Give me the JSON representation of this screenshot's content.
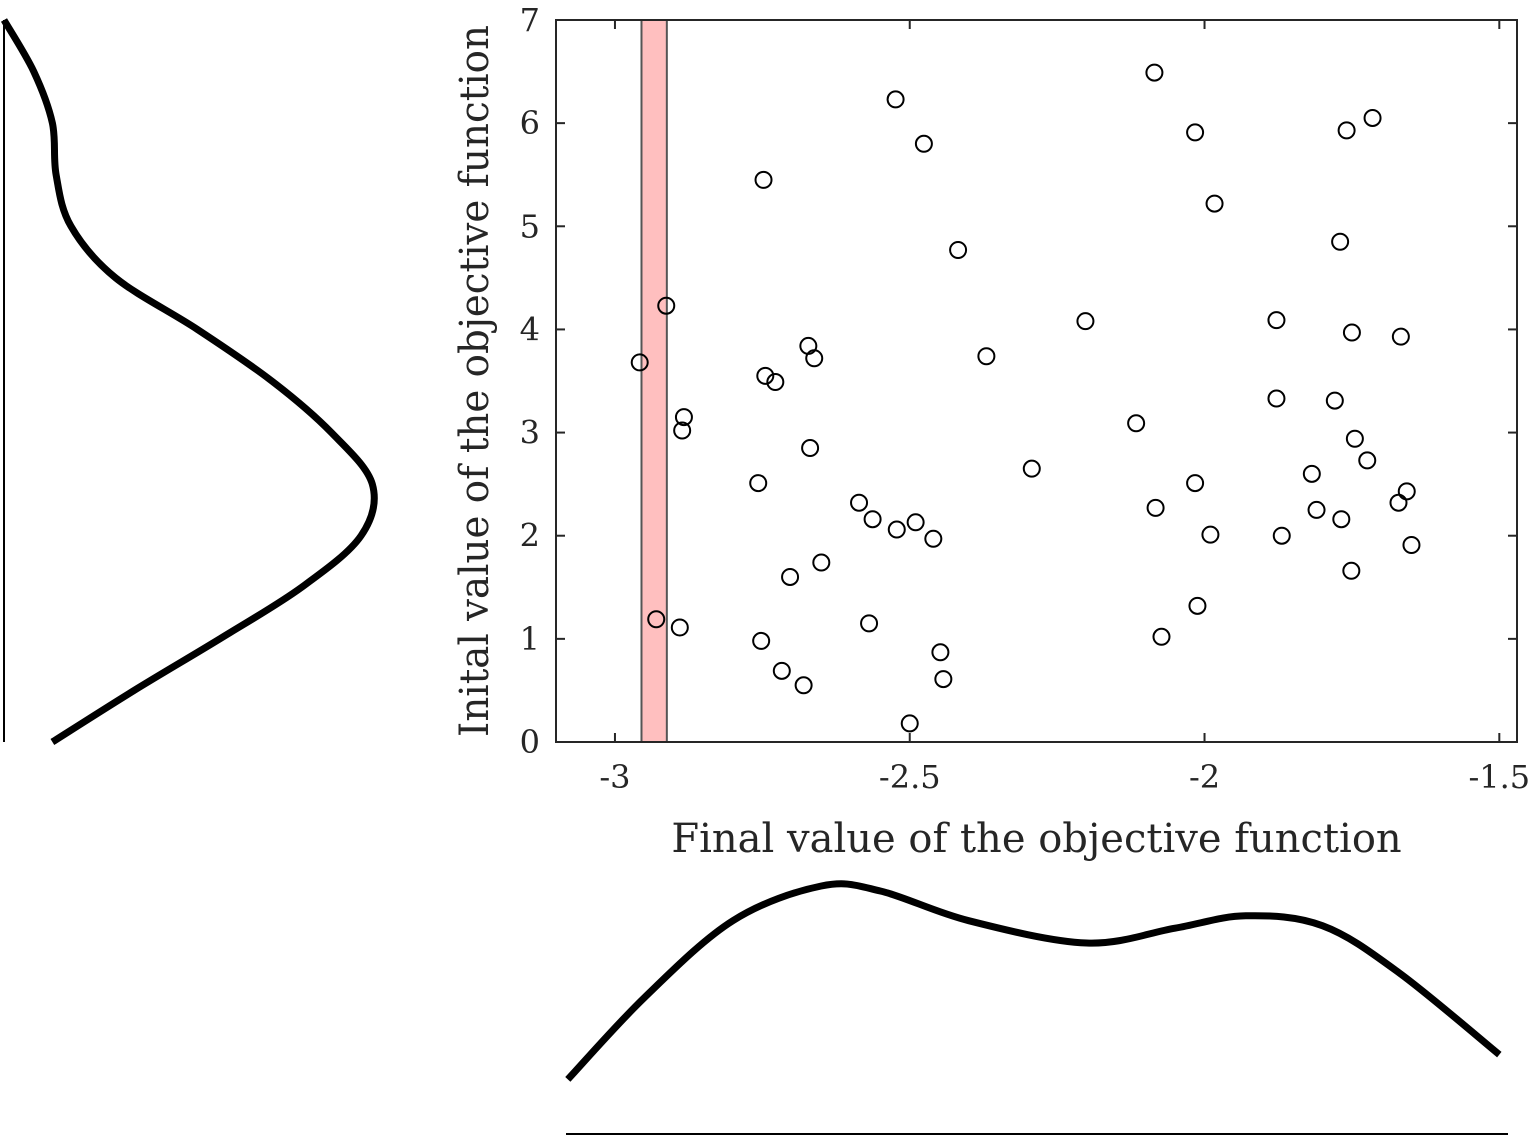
{
  "chart_data": {
    "type": "scatter",
    "title": "",
    "xlabel": "Final value of the objective function",
    "ylabel": "Inital value of the objective function",
    "xlim": [
      -3.1,
      -1.47
    ],
    "ylim": [
      0,
      7
    ],
    "xticks": [
      -3,
      -2.5,
      -2,
      -1.5
    ],
    "xtick_labels": [
      "-3",
      "-2.5",
      "-2",
      "-1.5"
    ],
    "yticks": [
      0,
      1,
      2,
      3,
      4,
      5,
      6,
      7
    ],
    "ytick_labels": [
      "0",
      "1",
      "2",
      "3",
      "4",
      "5",
      "6",
      "7"
    ],
    "grid": false,
    "highlight_band": {
      "x_range": [
        -2.955,
        -2.912
      ],
      "fill": "#ffbfbf",
      "edge": "#555555"
    },
    "marginal_density_x": {
      "x": [
        -3.08,
        -2.95,
        -2.8,
        -2.65,
        -2.55,
        -2.4,
        -2.2,
        -2.05,
        -1.93,
        -1.8,
        -1.67,
        -1.5
      ],
      "density": [
        0.22,
        0.55,
        0.86,
        1.0,
        0.98,
        0.86,
        0.77,
        0.83,
        0.88,
        0.84,
        0.65,
        0.32
      ]
    },
    "marginal_density_y": {
      "y": [
        0.0,
        0.5,
        1.0,
        1.5,
        2.0,
        2.5,
        3.0,
        3.5,
        4.0,
        4.5,
        5.0,
        5.5,
        6.0,
        6.5,
        7.0
      ],
      "density": [
        0.13,
        0.35,
        0.58,
        0.8,
        0.96,
        0.99,
        0.88,
        0.72,
        0.52,
        0.3,
        0.18,
        0.14,
        0.13,
        0.08,
        0.0
      ]
    },
    "series": [
      {
        "marker": "open-circle",
        "points": [
          [
            -2.958,
            3.68
          ],
          [
            -2.913,
            4.23
          ],
          [
            -2.93,
            1.19
          ],
          [
            -2.883,
            3.15
          ],
          [
            -2.886,
            3.02
          ],
          [
            -2.89,
            1.11
          ],
          [
            -2.748,
            5.45
          ],
          [
            -2.745,
            3.55
          ],
          [
            -2.728,
            3.49
          ],
          [
            -2.757,
            2.51
          ],
          [
            -2.752,
            0.98
          ],
          [
            -2.703,
            1.6
          ],
          [
            -2.717,
            0.69
          ],
          [
            -2.68,
            0.55
          ],
          [
            -2.672,
            3.84
          ],
          [
            -2.662,
            3.72
          ],
          [
            -2.669,
            2.85
          ],
          [
            -2.65,
            1.74
          ],
          [
            -2.586,
            2.32
          ],
          [
            -2.563,
            2.16
          ],
          [
            -2.569,
            1.15
          ],
          [
            -2.524,
            6.23
          ],
          [
            -2.522,
            2.06
          ],
          [
            -2.49,
            2.13
          ],
          [
            -2.476,
            5.8
          ],
          [
            -2.46,
            1.97
          ],
          [
            -2.448,
            0.87
          ],
          [
            -2.443,
            0.61
          ],
          [
            -2.5,
            0.18
          ],
          [
            -2.418,
            4.77
          ],
          [
            -2.37,
            3.74
          ],
          [
            -2.293,
            2.65
          ],
          [
            -2.202,
            4.08
          ],
          [
            -2.116,
            3.09
          ],
          [
            -2.085,
            6.49
          ],
          [
            -2.083,
            2.27
          ],
          [
            -2.073,
            1.02
          ],
          [
            -2.016,
            5.91
          ],
          [
            -2.016,
            2.51
          ],
          [
            -2.012,
            1.32
          ],
          [
            -1.99,
            2.01
          ],
          [
            -1.983,
            5.22
          ],
          [
            -1.878,
            4.09
          ],
          [
            -1.878,
            3.33
          ],
          [
            -1.869,
            2.0
          ],
          [
            -1.818,
            2.6
          ],
          [
            -1.81,
            2.25
          ],
          [
            -1.779,
            3.31
          ],
          [
            -1.77,
            4.85
          ],
          [
            -1.768,
            2.16
          ],
          [
            -1.759,
            5.93
          ],
          [
            -1.75,
            3.97
          ],
          [
            -1.751,
            1.66
          ],
          [
            -1.745,
            2.94
          ],
          [
            -1.724,
            2.73
          ],
          [
            -1.715,
            6.05
          ],
          [
            -1.671,
            2.32
          ],
          [
            -1.667,
            3.93
          ],
          [
            -1.657,
            2.43
          ],
          [
            -1.649,
            1.91
          ]
        ]
      }
    ]
  }
}
